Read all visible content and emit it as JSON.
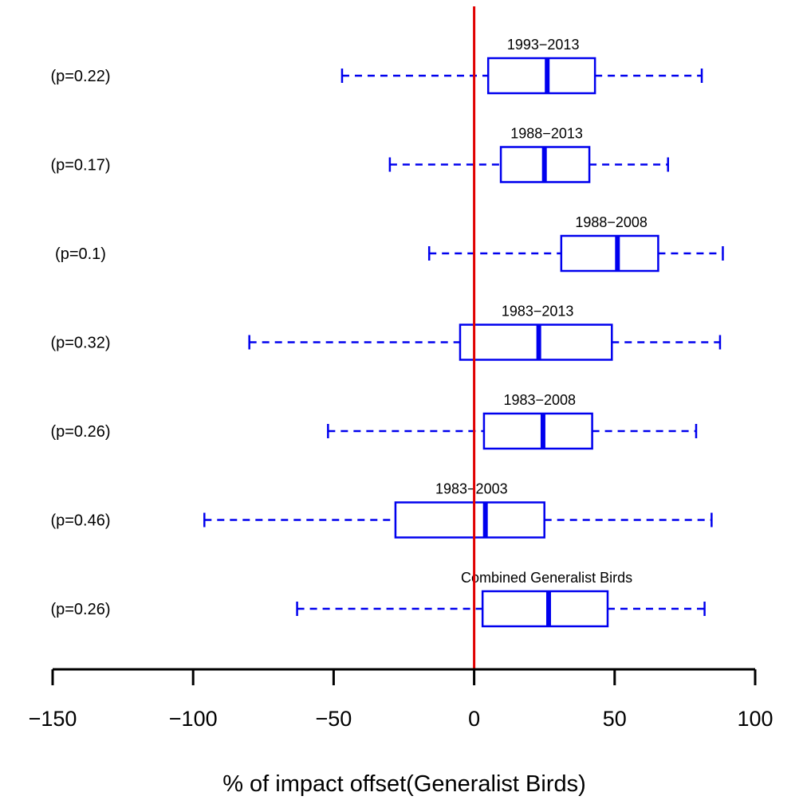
{
  "chart_data": {
    "type": "boxplot",
    "orientation": "horizontal",
    "title": "",
    "xlabel": "% of impact offset(Generalist Birds)",
    "ylabel": "",
    "xlim": [
      -150,
      100
    ],
    "xticks": [
      -150,
      -100,
      -50,
      0,
      50,
      100
    ],
    "xtick_labels": [
      "−150",
      "−100",
      "−50",
      "0",
      "50",
      "100"
    ],
    "reference_line": {
      "x": 0,
      "color": "#e00000"
    },
    "box_color": "#0000ee",
    "grid": false,
    "boxes": [
      {
        "label": "1993−2013",
        "p_label": "(p=0.22)",
        "whisker_low": -47,
        "q1": 5,
        "median": 26,
        "q3": 43,
        "whisker_high": 81
      },
      {
        "label": "1988−2013",
        "p_label": "(p=0.17)",
        "whisker_low": -30,
        "q1": 9.5,
        "median": 25,
        "q3": 41,
        "whisker_high": 69
      },
      {
        "label": "1988−2008",
        "p_label": "(p=0.1)",
        "whisker_low": -16,
        "q1": 31,
        "median": 51,
        "q3": 65.5,
        "whisker_high": 88.5
      },
      {
        "label": "1983−2013",
        "p_label": "(p=0.32)",
        "whisker_low": -80,
        "q1": -5,
        "median": 23,
        "q3": 49,
        "whisker_high": 87.5
      },
      {
        "label": "1983−2008",
        "p_label": "(p=0.26)",
        "whisker_low": -52,
        "q1": 3.5,
        "median": 24.5,
        "q3": 42,
        "whisker_high": 79
      },
      {
        "label": "1983−2003",
        "p_label": "(p=0.46)",
        "whisker_low": -96,
        "q1": -28,
        "median": 4,
        "q3": 25,
        "whisker_high": 84.5
      },
      {
        "label": "Combined Generalist Birds",
        "p_label": "(p=0.26)",
        "whisker_low": -63,
        "q1": 3,
        "median": 26.5,
        "q3": 47.5,
        "whisker_high": 82
      }
    ]
  }
}
